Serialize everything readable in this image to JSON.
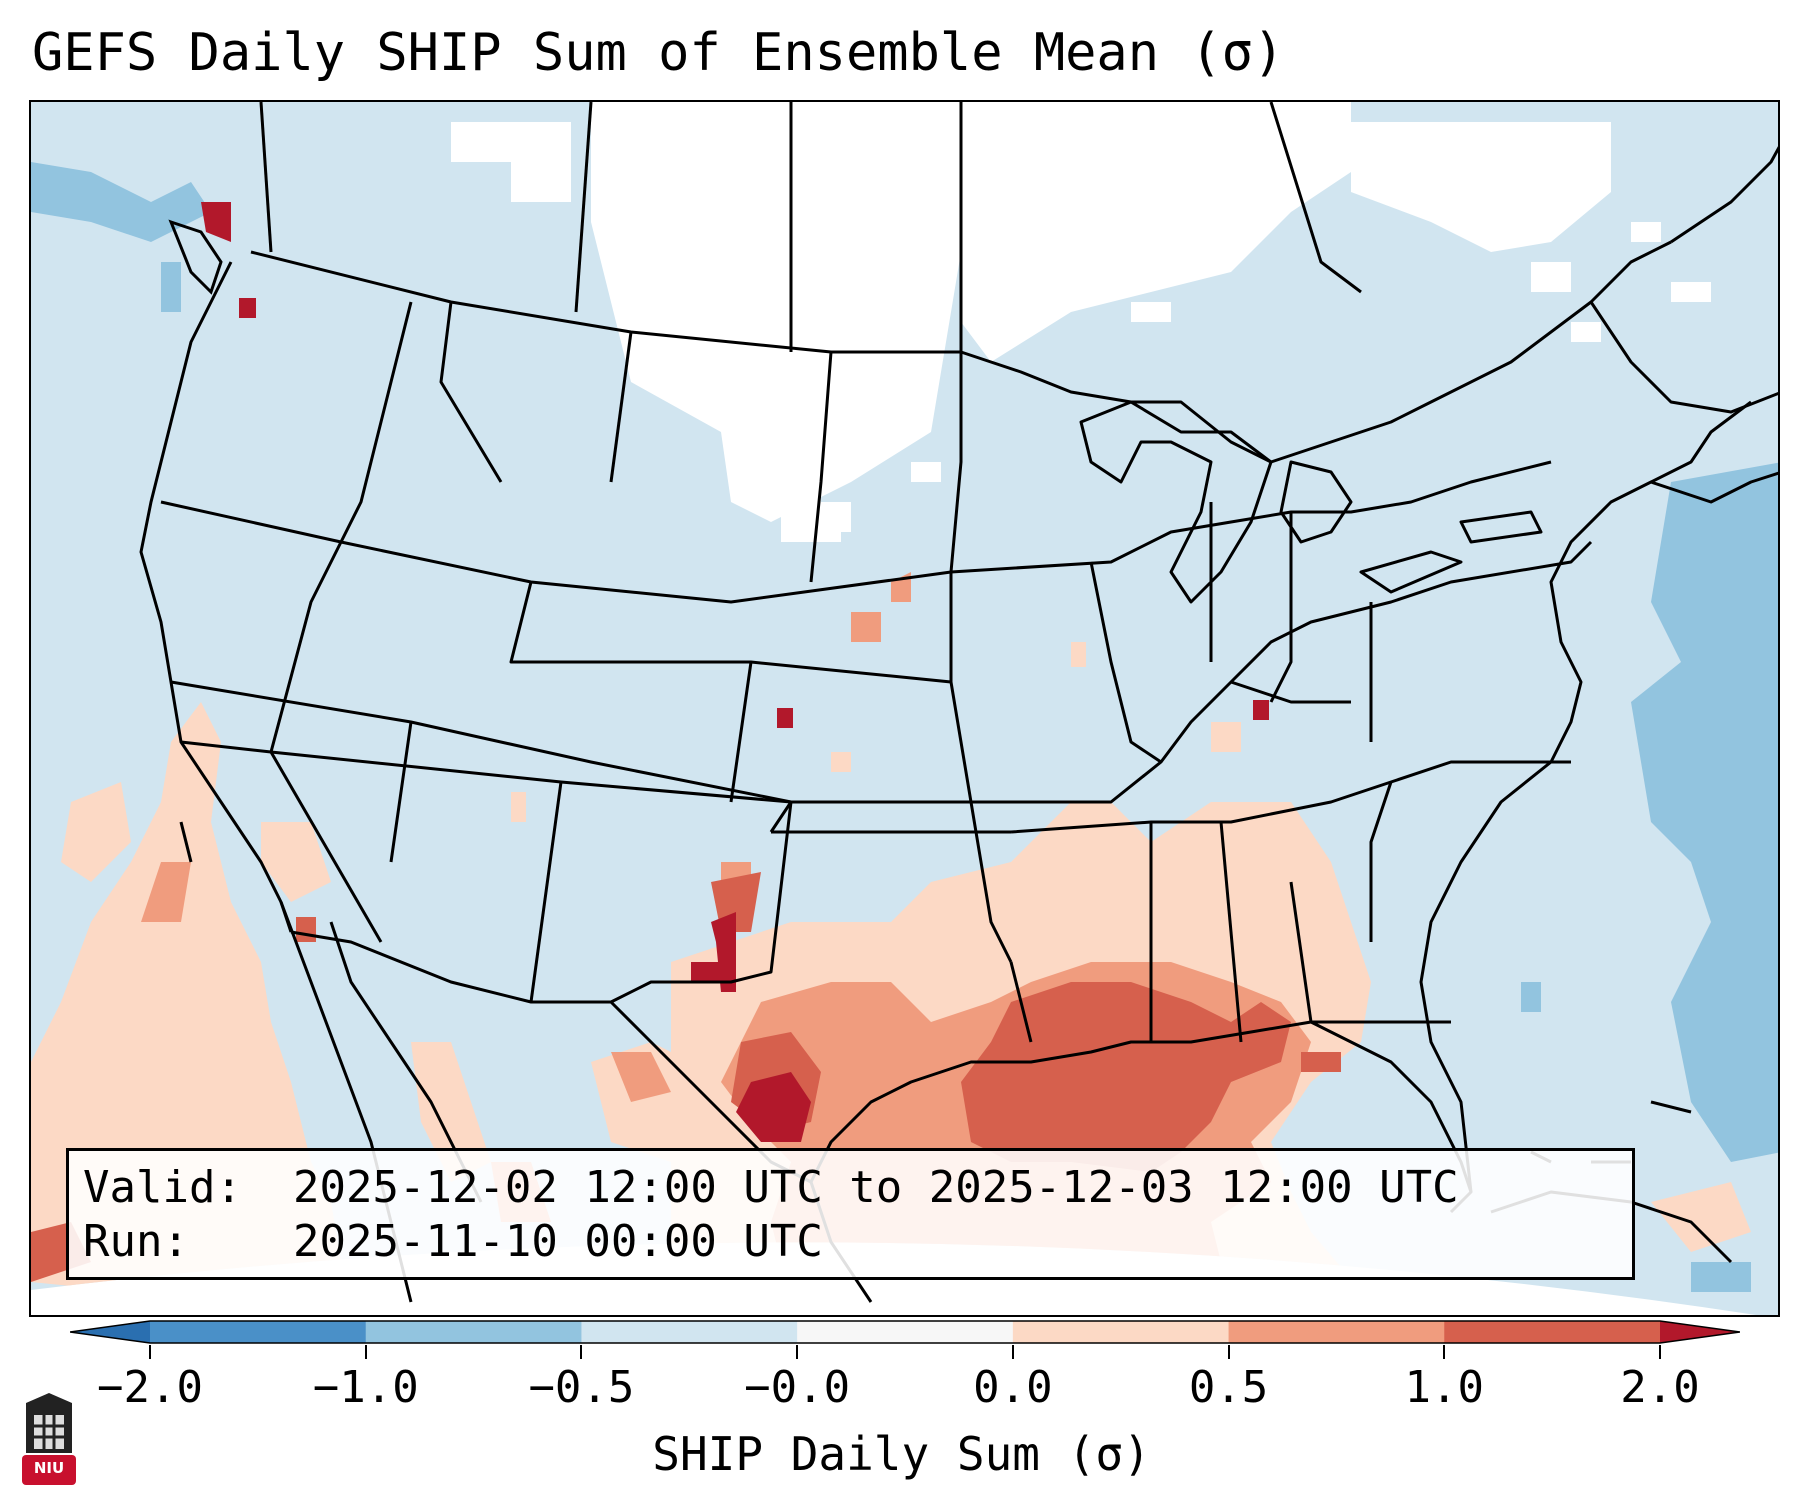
{
  "figure": {
    "title": "GEFS Daily SHIP Sum of Ensemble Mean (σ)",
    "valid_label": "Valid:",
    "valid_value": "2025-12-02 12:00 UTC to 2025-12-03 12:00 UTC",
    "run_label": "Run:",
    "run_value": "2025-11-10 00:00 UTC",
    "colorbar_label": "SHIP Daily Sum (σ)",
    "logo_text": "NIU"
  },
  "colorbar": {
    "ticks": [
      "−2.0",
      "−1.0",
      "−0.5",
      "−0.0",
      "0.0",
      "0.5",
      "1.0",
      "2.0"
    ],
    "bins": [
      {
        "range": "-2.0 to -1.0",
        "color": "#4a90c8"
      },
      {
        "range": "-1.0 to -0.5",
        "color": "#92c4df"
      },
      {
        "range": "-0.5 to -0.0",
        "color": "#d1e5f0"
      },
      {
        "range": "-0.0 to 0.0",
        "color": "#f7f7f7"
      },
      {
        "range": "0.0 to 0.5",
        "color": "#fcd9c5"
      },
      {
        "range": "0.5 to 1.0",
        "color": "#f09c7e"
      },
      {
        "range": "1.0 to 2.0",
        "color": "#d6604d"
      }
    ],
    "extend_low_color": "#2a6fb0",
    "extend_high_color": "#b2182b"
  },
  "colors": {
    "background_ocean_land": "#d1e5f0",
    "white_zone": "#ffffff",
    "boundaries": "#000000"
  }
}
